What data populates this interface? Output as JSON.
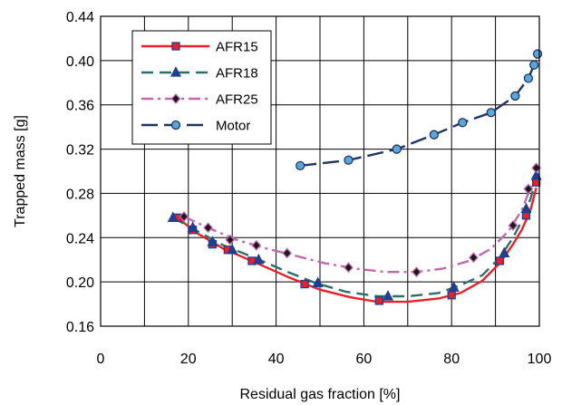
{
  "chart_data": {
    "type": "line",
    "title": "",
    "xlabel": "Residual gas fraction [%]",
    "ylabel": "Trapped mass [g]",
    "xlim": [
      0,
      100
    ],
    "ylim": [
      0.16,
      0.44
    ],
    "x_ticks": [
      0,
      20,
      40,
      60,
      80,
      100
    ],
    "y_ticks": [
      0.16,
      0.2,
      0.24,
      0.28,
      0.32,
      0.36,
      0.4,
      0.44
    ],
    "x_tick_labels": [
      "0",
      "20",
      "40",
      "60",
      "80",
      "100"
    ],
    "y_tick_labels": [
      "0.16",
      "0.20",
      "0.24",
      "0.28",
      "0.32",
      "0.36",
      "0.40",
      "0.44"
    ],
    "x_minor_step": 10,
    "grid": true,
    "legend_position": "top-left",
    "series": [
      {
        "name": "AFR15",
        "color": "#e8202a",
        "line_style": "solid",
        "marker": "square",
        "marker_fill": "#e8202a",
        "marker_stroke": "#1f3f8f",
        "points": [
          [
            17.5,
            0.258
          ],
          [
            21,
            0.247
          ],
          [
            25.5,
            0.234
          ],
          [
            29,
            0.229
          ],
          [
            34.5,
            0.219
          ],
          [
            46.5,
            0.198
          ],
          [
            63.5,
            0.183
          ],
          [
            80,
            0.188
          ],
          [
            91,
            0.219
          ],
          [
            97,
            0.26
          ],
          [
            99.3,
            0.29
          ]
        ],
        "curve": [
          [
            17.5,
            0.258
          ],
          [
            22,
            0.244
          ],
          [
            28,
            0.23
          ],
          [
            35,
            0.218
          ],
          [
            43,
            0.204
          ],
          [
            50,
            0.193
          ],
          [
            57,
            0.186
          ],
          [
            63,
            0.182
          ],
          [
            70,
            0.182
          ],
          [
            77,
            0.185
          ],
          [
            82,
            0.19
          ],
          [
            87,
            0.201
          ],
          [
            91,
            0.217
          ],
          [
            94,
            0.234
          ],
          [
            96,
            0.247
          ],
          [
            98,
            0.265
          ],
          [
            99.3,
            0.285
          ]
        ]
      },
      {
        "name": "AFR18",
        "color": "#2e6e6a",
        "line_style": "dashed",
        "marker": "triangle",
        "marker_fill": "#1f3f8f",
        "marker_stroke": "#1f3f8f",
        "points": [
          [
            16.5,
            0.258
          ],
          [
            21,
            0.249
          ],
          [
            25.5,
            0.236
          ],
          [
            30,
            0.229
          ],
          [
            36,
            0.22
          ],
          [
            49.5,
            0.199
          ],
          [
            65.5,
            0.187
          ],
          [
            80.5,
            0.195
          ],
          [
            92,
            0.226
          ],
          [
            97,
            0.266
          ],
          [
            99.3,
            0.296
          ]
        ],
        "curve": [
          [
            16.5,
            0.258
          ],
          [
            22,
            0.246
          ],
          [
            28,
            0.233
          ],
          [
            35,
            0.222
          ],
          [
            42,
            0.21
          ],
          [
            49,
            0.199
          ],
          [
            56,
            0.191
          ],
          [
            63,
            0.187
          ],
          [
            70,
            0.187
          ],
          [
            77,
            0.19
          ],
          [
            82,
            0.197
          ],
          [
            87,
            0.206
          ],
          [
            91,
            0.222
          ],
          [
            94,
            0.24
          ],
          [
            96,
            0.255
          ],
          [
            98,
            0.275
          ],
          [
            99.3,
            0.294
          ]
        ]
      },
      {
        "name": "AFR25",
        "color": "#c468ab",
        "line_style": "dashdot",
        "marker": "diamond",
        "marker_fill": "#1a1a1a",
        "marker_stroke": "#c468ab",
        "points": [
          [
            19,
            0.259
          ],
          [
            24.5,
            0.249
          ],
          [
            29.5,
            0.238
          ],
          [
            35.5,
            0.233
          ],
          [
            42.5,
            0.226
          ],
          [
            56.5,
            0.213
          ],
          [
            72,
            0.209
          ],
          [
            85,
            0.222
          ],
          [
            94,
            0.251
          ],
          [
            97.5,
            0.284
          ],
          [
            99.3,
            0.303
          ]
        ],
        "curve": [
          [
            19,
            0.259
          ],
          [
            25,
            0.248
          ],
          [
            31,
            0.238
          ],
          [
            37,
            0.231
          ],
          [
            44,
            0.224
          ],
          [
            51,
            0.217
          ],
          [
            58,
            0.212
          ],
          [
            65,
            0.209
          ],
          [
            72,
            0.209
          ],
          [
            78,
            0.212
          ],
          [
            84,
            0.219
          ],
          [
            89,
            0.23
          ],
          [
            93,
            0.246
          ],
          [
            96,
            0.265
          ],
          [
            98,
            0.285
          ],
          [
            99.3,
            0.3
          ]
        ]
      },
      {
        "name": "Motor",
        "color": "#1f3366",
        "line_style": "longdash",
        "marker": "circle",
        "marker_fill": "#5aa8d8",
        "marker_stroke": "#1f3366",
        "points": [
          [
            45.5,
            0.305
          ],
          [
            56.5,
            0.31
          ],
          [
            67.5,
            0.32
          ],
          [
            76,
            0.333
          ],
          [
            82.5,
            0.344
          ],
          [
            89,
            0.353
          ],
          [
            94.5,
            0.368
          ],
          [
            97.5,
            0.384
          ],
          [
            98.8,
            0.396
          ],
          [
            99.6,
            0.406
          ]
        ],
        "curve": [
          [
            45.5,
            0.305
          ],
          [
            56.5,
            0.31
          ],
          [
            67.5,
            0.32
          ],
          [
            76,
            0.333
          ],
          [
            82.5,
            0.344
          ],
          [
            89,
            0.353
          ],
          [
            94.5,
            0.368
          ],
          [
            97.5,
            0.384
          ],
          [
            98.8,
            0.396
          ],
          [
            99.6,
            0.406
          ]
        ]
      }
    ]
  }
}
